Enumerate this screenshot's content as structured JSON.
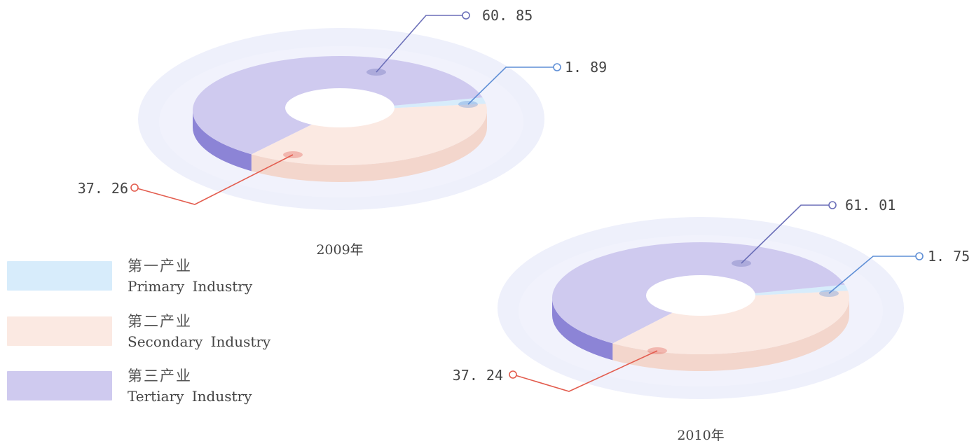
{
  "chart_data": [
    {
      "type": "pie",
      "title": "2009年",
      "categories": [
        "第一产业",
        "第二产业",
        "第三产业"
      ],
      "values": [
        1.89,
        37.26,
        60.85
      ],
      "value_labels": [
        "1.89",
        "37.26",
        "60.85"
      ]
    },
    {
      "type": "pie",
      "title": "2010年",
      "categories": [
        "第一产业",
        "第二产业",
        "第三产业"
      ],
      "values": [
        1.75,
        37.24,
        61.01
      ],
      "value_labels": [
        "1.75",
        "37.24",
        "61.01"
      ]
    }
  ],
  "legend": {
    "items": [
      {
        "zh": "第一产业",
        "en": "Primary  Industry",
        "color": "#d7ecfb"
      },
      {
        "zh": "第二产业",
        "en": "Secondary  Industry",
        "color": "#fbe9e2"
      },
      {
        "zh": "第三产业",
        "en": "Tertiary  Industry",
        "color": "#cfcaef"
      }
    ]
  },
  "style": {
    "background_disc_color": "#eef0fb",
    "inner_hole_color": "#ffffff",
    "series_colors": [
      "#d7ecfb",
      "#fbe9e2",
      "#cfcaef"
    ],
    "series_side_colors": [
      "#a9d6f3",
      "#f3d6cc",
      "#8c84d6"
    ],
    "leader_colors": [
      "#5f8fd6",
      "#e35d4f",
      "#6b6fb8"
    ]
  }
}
